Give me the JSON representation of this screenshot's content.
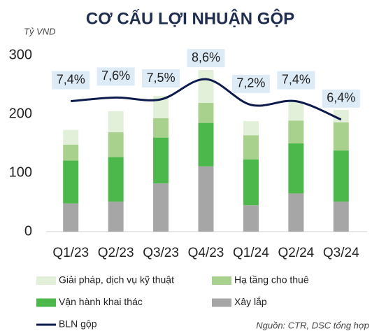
{
  "chart_data": {
    "type": "bar",
    "stacked": true,
    "title": "CƠ CẤU LỢI NHUẬN GỘP",
    "y_label": "Tỷ VND",
    "source": "Nguồn: CTR, DSC tổng hợp",
    "categories": [
      "Q1/23",
      "Q2/23",
      "Q3/23",
      "Q4/23",
      "Q1/24",
      "Q2/24",
      "Q3/24"
    ],
    "ylim": [
      0,
      300
    ],
    "yticks": [
      0,
      100,
      200,
      300
    ],
    "y2lim": [
      0.3,
      9.9
    ],
    "series": [
      {
        "name": "Giải pháp, dịch vụ kỹ thuật",
        "color": "#e2f0d9",
        "values": [
          25,
          36,
          38,
          56,
          24,
          32,
          21
        ]
      },
      {
        "name": "Hạ tầng cho thuê",
        "color": "#a9d18e",
        "values": [
          27,
          42,
          33,
          34,
          41,
          39,
          48
        ]
      },
      {
        "name": "Vận hành khai thác",
        "color": "#4cb84c",
        "values": [
          73,
          76,
          78,
          74,
          78,
          85,
          87
        ]
      },
      {
        "name": "Xây lắp",
        "color": "#a6a6a6",
        "values": [
          48,
          51,
          82,
          111,
          45,
          65,
          51
        ]
      },
      {
        "name": "BLN gộp",
        "type": "line",
        "axis": "y2",
        "color": "#0d1b4c",
        "values": [
          7.4,
          7.6,
          7.5,
          8.6,
          7.2,
          7.4,
          6.4
        ],
        "value_labels": [
          "7,4%",
          "7,6%",
          "7,5%",
          "8,6%",
          "7,2%",
          "7,4%",
          "6,4%"
        ]
      }
    ]
  }
}
